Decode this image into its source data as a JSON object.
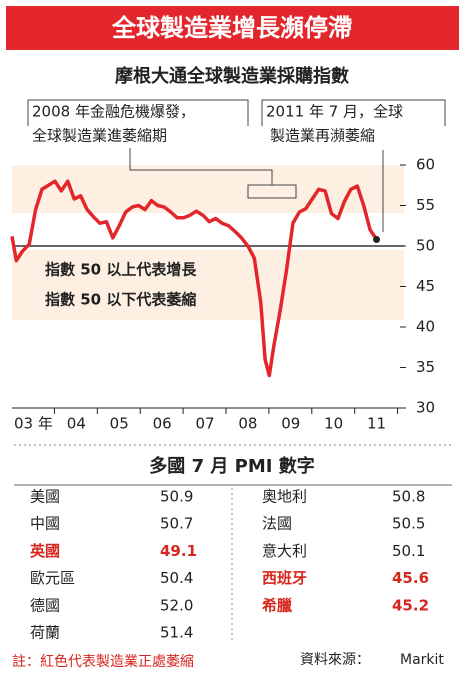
{
  "header": {
    "title": "全球製造業增長瀕停滯"
  },
  "chart_data": {
    "type": "line",
    "title": "摩根大通全球製造業採購指數",
    "x": [
      2003.0,
      2003.1,
      2003.25,
      2003.4,
      2003.55,
      2003.7,
      2003.85,
      2004.0,
      2004.15,
      2004.3,
      2004.45,
      2004.6,
      2004.75,
      2004.9,
      2005.05,
      2005.2,
      2005.35,
      2005.5,
      2005.65,
      2005.8,
      2005.95,
      2006.1,
      2006.25,
      2006.4,
      2006.55,
      2006.7,
      2006.85,
      2007.0,
      2007.15,
      2007.3,
      2007.45,
      2007.6,
      2007.75,
      2007.9,
      2008.05,
      2008.2,
      2008.35,
      2008.5,
      2008.65,
      2008.8,
      2008.9,
      2009.0,
      2009.1,
      2009.25,
      2009.4,
      2009.55,
      2009.7,
      2009.85,
      2010.0,
      2010.15,
      2010.3,
      2010.45,
      2010.6,
      2010.75,
      2010.9,
      2011.05,
      2011.2,
      2011.35,
      2011.5
    ],
    "values": [
      51.2,
      48.2,
      49.4,
      50.2,
      54.5,
      57.0,
      57.5,
      58.0,
      56.8,
      58.0,
      55.8,
      56.2,
      54.5,
      53.6,
      52.8,
      53.0,
      51.0,
      52.5,
      54.2,
      54.8,
      55.0,
      54.5,
      55.6,
      55.0,
      54.8,
      54.2,
      53.5,
      53.5,
      53.8,
      54.3,
      53.8,
      53.0,
      53.4,
      52.8,
      52.5,
      51.8,
      51.0,
      50.0,
      48.5,
      43.0,
      36.0,
      34.0,
      37.5,
      42.0,
      47.0,
      52.8,
      54.2,
      54.6,
      55.8,
      57.0,
      56.8,
      54.0,
      53.4,
      55.5,
      57.0,
      57.4,
      55.0,
      52.0,
      50.8
    ],
    "color": "#e3262b",
    "xlim": [
      2003,
      2011.65
    ],
    "xticks": [
      {
        "value": 2003.5,
        "label": "03 年"
      },
      {
        "value": 2004.5,
        "label": "04"
      },
      {
        "value": 2005.5,
        "label": "05"
      },
      {
        "value": 2006.5,
        "label": "06"
      },
      {
        "value": 2007.5,
        "label": "07"
      },
      {
        "value": 2008.5,
        "label": "08"
      },
      {
        "value": 2009.5,
        "label": "09"
      },
      {
        "value": 2010.5,
        "label": "10"
      },
      {
        "value": 2011.5,
        "label": "11"
      }
    ],
    "ylim": [
      30,
      60
    ],
    "yticks": [
      30,
      35,
      40,
      45,
      50,
      55,
      60
    ],
    "reference_line": 50,
    "annotations": [
      "2008 年金融危機爆發，",
      "全球製造業進萎縮期",
      "2011 年 7 月，全球",
      "製造業再瀕萎縮",
      "指數 50 以上代表增長",
      "指數 50 以下代表萎縮"
    ]
  },
  "table": {
    "title": "多國 7 月 PMI 數字",
    "left": [
      {
        "name": "美國",
        "value": "50.9",
        "color": "#222222"
      },
      {
        "name": "中國",
        "value": "50.7",
        "color": "#222222"
      },
      {
        "name": "英國",
        "value": "49.1",
        "color": "#d7261e"
      },
      {
        "name": "歐元區",
        "value": "50.4",
        "color": "#222222"
      },
      {
        "name": "德國",
        "value": "52.0",
        "color": "#222222"
      },
      {
        "name": "荷蘭",
        "value": "51.4",
        "color": "#222222"
      }
    ],
    "right": [
      {
        "name": "奧地利",
        "value": "50.8",
        "color": "#222222"
      },
      {
        "name": "法國",
        "value": "50.5",
        "color": "#222222"
      },
      {
        "name": "意大利",
        "value": "50.1",
        "color": "#222222"
      },
      {
        "name": "西班牙",
        "value": "45.6",
        "color": "#d7261e"
      },
      {
        "name": "希臘",
        "value": "45.2",
        "color": "#d7261e"
      }
    ]
  },
  "footer": {
    "note": "註：紅色代表製造業正處萎縮",
    "source_label": "資料來源：",
    "source": "Markit"
  }
}
